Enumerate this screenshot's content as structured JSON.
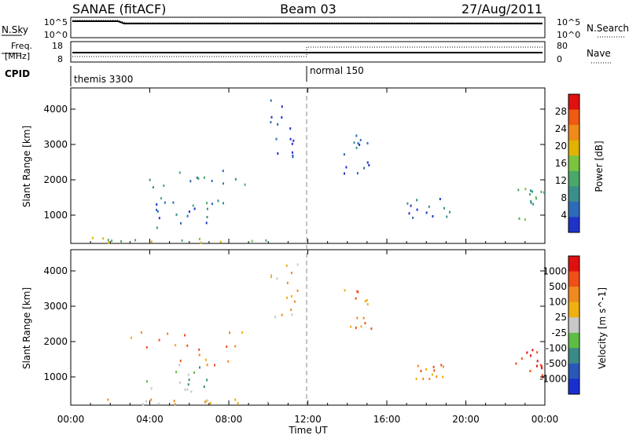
{
  "header": {
    "left": "SANAE (fitACF)",
    "center": "Beam 03",
    "right": "27/Aug/2011"
  },
  "sky_panel": {
    "left_label": "N.Sky",
    "left_ticks": [
      "10^5",
      "10^0"
    ],
    "right_label": "N.Search",
    "right_ticks": [
      "10^5",
      "10^0"
    ]
  },
  "freq_panel": {
    "left_label_1": "Freq.",
    "left_label_2": "[MHz]",
    "left_ticks": [
      "18",
      "8"
    ],
    "right_label": "Nave",
    "right_ticks": [
      "80",
      "0"
    ]
  },
  "cpid_panel": {
    "label": "CPID",
    "segments": [
      {
        "name": "themis 3300",
        "start_hour": 0
      },
      {
        "name": "normal 150",
        "start_hour": 12
      }
    ]
  },
  "x_axis": {
    "label": "Time UT",
    "range_hours": [
      0,
      24
    ],
    "tick_labels": [
      "00:00",
      "04:00",
      "08:00",
      "12:00",
      "16:00",
      "20:00",
      "00:00"
    ]
  },
  "colors": {
    "power_scale": [
      "#1f33c9",
      "#2e6bb8",
      "#3a8f8a",
      "#4aa86a",
      "#7cc33f",
      "#e0b300",
      "#f08a18",
      "#f05a12",
      "#e01010"
    ],
    "velocity_scale": [
      "#1a2fd0",
      "#2a58b8",
      "#3a8a86",
      "#5fbd45",
      "#c8c8c8",
      "#f0b010",
      "#f08a20",
      "#f05018",
      "#e01010"
    ]
  },
  "chart_data": [
    {
      "type": "heatmap",
      "title": "",
      "xlabel": "",
      "ylabel": "Slant Range [km]",
      "xlim": [
        0,
        24
      ],
      "ylim": [
        200,
        4600
      ],
      "y_ticks": [
        "1000",
        "2000",
        "3000",
        "4000"
      ],
      "colorbar": {
        "label": "Power [dB]",
        "ticks": [
          "4",
          "8",
          "12",
          "16",
          "20",
          "24",
          "28"
        ],
        "range": [
          0,
          32
        ]
      },
      "clusters": [
        {
          "x": [
            2.8,
            8.8
          ],
          "y": [
            1300,
            2300
          ],
          "level": 2
        },
        {
          "x": [
            3.8,
            7.2
          ],
          "y": [
            600,
            1400
          ],
          "level": 1
        },
        {
          "x": [
            1.0,
            10.0
          ],
          "y": [
            250,
            400
          ],
          "level": 4
        },
        {
          "x": [
            13.8,
            15.2
          ],
          "y": [
            2200,
            3500
          ],
          "level": 1
        },
        {
          "x": [
            17.0,
            19.2
          ],
          "y": [
            950,
            1500
          ],
          "level": 1
        },
        {
          "x": [
            22.5,
            24.0
          ],
          "y": [
            900,
            1800
          ],
          "level": 3
        },
        {
          "x": [
            10.0,
            11.5
          ],
          "y": [
            2600,
            4300
          ],
          "level": 0
        }
      ]
    },
    {
      "type": "heatmap",
      "title": "",
      "xlabel": "Time UT",
      "ylabel": "Slant Range [km]",
      "xlim": [
        0,
        24
      ],
      "ylim": [
        200,
        4600
      ],
      "y_ticks": [
        "1000",
        "2000",
        "3000",
        "4000"
      ],
      "colorbar": {
        "label": "Velocity [m s^-1]",
        "ticks": [
          "1000",
          "500",
          "100",
          "25",
          "-25",
          "-100",
          "-500",
          "-1000"
        ]
      },
      "clusters": [
        {
          "x": [
            2.8,
            8.8
          ],
          "y": [
            1300,
            2300
          ],
          "level": 6
        },
        {
          "x": [
            3.8,
            7.2
          ],
          "y": [
            600,
            1400
          ],
          "level": 3
        },
        {
          "x": [
            1.0,
            10.0
          ],
          "y": [
            250,
            400
          ],
          "level": 5
        },
        {
          "x": [
            13.8,
            15.2
          ],
          "y": [
            2200,
            3500
          ],
          "level": 6
        },
        {
          "x": [
            17.0,
            19.2
          ],
          "y": [
            950,
            1500
          ],
          "level": 6
        },
        {
          "x": [
            22.5,
            24.0
          ],
          "y": [
            900,
            1800
          ],
          "level": 8
        },
        {
          "x": [
            10.0,
            11.5
          ],
          "y": [
            2600,
            4300
          ],
          "level": 5
        }
      ]
    }
  ]
}
